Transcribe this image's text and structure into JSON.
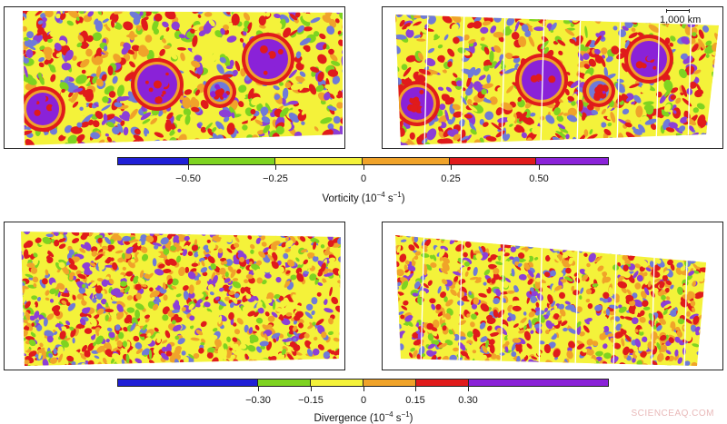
{
  "colors": {
    "blue": "#1f1fd6",
    "green": "#7ed321",
    "yellow": "#f4f23a",
    "orange": "#f0a32a",
    "red": "#e01b1b",
    "purple": "#8a22d8",
    "patch_blue": "#6f7ad8",
    "patch_purple": "#8c3fd6"
  },
  "scale_bar": {
    "label": "1,000 km"
  },
  "vorticity": {
    "title_text": "Vorticity (10",
    "title_exp": "−4",
    "title_unit": " s",
    "title_unit_exp": "−1",
    "title_close": ")",
    "tick_labels": [
      "−0.50",
      "−0.25",
      "0",
      "0.25",
      "0.50"
    ],
    "bands": [
      {
        "color": "#1f1fd6"
      },
      {
        "color": "#7ed321"
      },
      {
        "color": "#f4f23a"
      },
      {
        "color": "#f0a32a"
      },
      {
        "color": "#e01b1b"
      },
      {
        "color": "#8a22d8"
      }
    ]
  },
  "divergence": {
    "title_text": "Divergence (10",
    "title_exp": "−4",
    "title_unit": " s",
    "title_unit_exp": "−1",
    "title_close": ")",
    "tick_labels": [
      "−0.30",
      "−0.15",
      "0",
      "0.15",
      "0.30"
    ],
    "bands": [
      {
        "color": "#1f1fd6"
      },
      {
        "color": "#7ed321"
      },
      {
        "color": "#f4f23a"
      },
      {
        "color": "#f0a32a"
      },
      {
        "color": "#e01b1b"
      },
      {
        "color": "#8a22d8"
      }
    ]
  },
  "watermark": "SCIENCEAQ.COM"
}
